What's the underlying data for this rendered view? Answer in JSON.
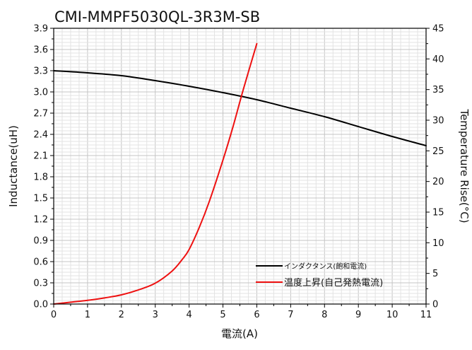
{
  "chart_data": {
    "type": "line",
    "title": "CMI-MMPF5030QL-3R3M-SB",
    "xlabel": "電流(A)",
    "ylabel_left": "Inductance(uH)",
    "ylabel_right": "Temperature Rise(°C)",
    "xlim": [
      0,
      11
    ],
    "ylim_left": [
      0,
      3.9
    ],
    "ylim_right": [
      0,
      45
    ],
    "x_ticks": [
      0,
      1,
      2,
      3,
      4,
      5,
      6,
      7,
      8,
      9,
      10,
      11
    ],
    "y_left_ticks": [
      "0.0",
      "0.3",
      "0.6",
      "0.9",
      "1.2",
      "1.5",
      "1.8",
      "2.1",
      "2.4",
      "2.7",
      "3.0",
      "3.3",
      "3.6",
      "3.9"
    ],
    "y_right_ticks": [
      0,
      5,
      10,
      15,
      20,
      25,
      30,
      35,
      40,
      45
    ],
    "grid": true,
    "legend_position": "bottom-right",
    "series": [
      {
        "name": "インダクタンス(飽和電流)",
        "axis": "left",
        "color": "#000000",
        "x": [
          0,
          1,
          2,
          3,
          4,
          5,
          6,
          7,
          8,
          9,
          10,
          11
        ],
        "y": [
          3.3,
          3.27,
          3.23,
          3.16,
          3.08,
          2.99,
          2.89,
          2.77,
          2.65,
          2.51,
          2.37,
          2.24
        ]
      },
      {
        "name": "温度上昇(自己発熱電流)",
        "axis": "right",
        "color": "#ee1111",
        "x": [
          0,
          0.5,
          1,
          1.5,
          2,
          2.5,
          3,
          3.5,
          3.8,
          4,
          4.3,
          4.6,
          5,
          5.3,
          5.6,
          6
        ],
        "y": [
          0,
          0.3,
          0.6,
          1.0,
          1.5,
          2.3,
          3.4,
          5.4,
          7.3,
          8.9,
          12.5,
          16.8,
          23.5,
          29.0,
          35.0,
          42.5
        ]
      }
    ]
  }
}
